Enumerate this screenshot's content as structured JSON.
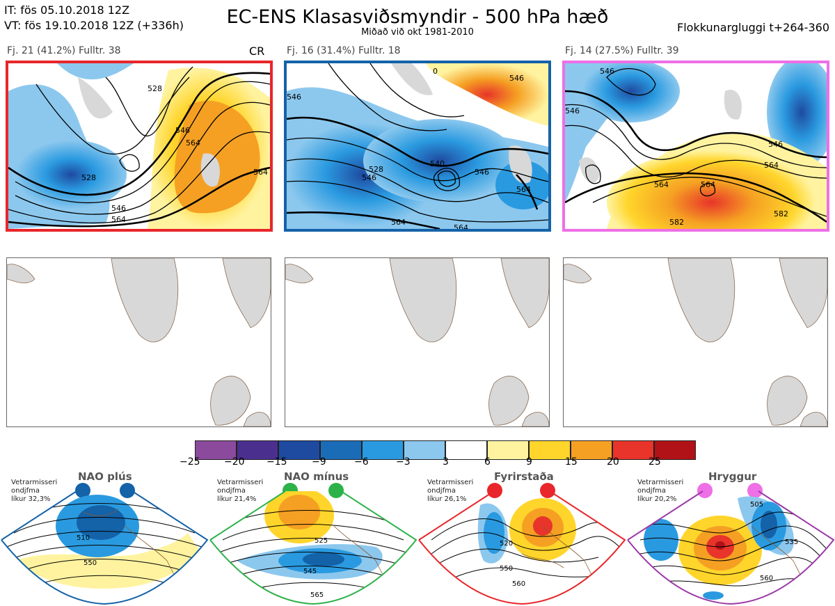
{
  "header": {
    "it": "IT: fös 05.10.2018 12Z",
    "vt": "VT: fös 19.10.2018 12Z  (+336h)",
    "title": "EC-ENS Klasasviðsmyndir - 500 hPa hæð",
    "subtitle": "Miðað við okt 1981-2010",
    "window": "Flokkunargluggi t+264-360"
  },
  "clusters": [
    {
      "label": "Fj. 21 (41.2%)   Fulltr. 38",
      "tag": "CR",
      "border_color": "#e8262b",
      "contours": [
        "528",
        "546",
        "564",
        "546",
        "564",
        "528",
        "564"
      ]
    },
    {
      "label": "Fj. 16 (31.4%)   Fulltr. 18",
      "tag": "",
      "border_color": "#1462a8",
      "contours": [
        "546",
        "546",
        "528",
        "540",
        "546",
        "564",
        "546",
        "564",
        "564",
        "0"
      ]
    },
    {
      "label": "Fj. 14 (27.5%)   Fulltr. 39",
      "tag": "",
      "border_color": "#ee6fe6",
      "contours": [
        "546",
        "546",
        "564",
        "564",
        "546",
        "582",
        "582",
        "564"
      ]
    }
  ],
  "colorbar": {
    "colors": [
      "#8b4a9b",
      "#4a2f8f",
      "#1e4aa0",
      "#1b6cb6",
      "#2a9ae0",
      "#8cc8ee",
      "#ffffff",
      "#fff3a0",
      "#ffd52b",
      "#f5a023",
      "#e8342a",
      "#b01218"
    ],
    "ticks": [
      "−25",
      "−20",
      "−15",
      "−9",
      "−6",
      "−3",
      "3",
      "6",
      "9",
      "15",
      "20",
      "25"
    ]
  },
  "regimes": [
    {
      "name": "NAO plús",
      "note": [
        "Vetrarmisseri",
        "ondjfma",
        "líkur 32,3%"
      ],
      "color": "#1462a8",
      "contours": [
        "510",
        "550"
      ]
    },
    {
      "name": "NAO mínus",
      "note": [
        "Vetrarmisseri",
        "ondjfma",
        "líkur 21,4%"
      ],
      "color": "#2db24a",
      "contours": [
        "525",
        "545",
        "565"
      ]
    },
    {
      "name": "Fyrirstaða",
      "note": [
        "Vetrarmisseri",
        "ondjfma",
        "líkur 26,1%"
      ],
      "color": "#e8262b",
      "contours": [
        "520",
        "550",
        "560"
      ]
    },
    {
      "name": "Hryggur",
      "note": [
        "Vetrarmisseri",
        "ondjfma",
        "líkur 20,2%"
      ],
      "color": "#ee6fe6",
      "contours": [
        "505",
        "535",
        "560"
      ]
    }
  ]
}
